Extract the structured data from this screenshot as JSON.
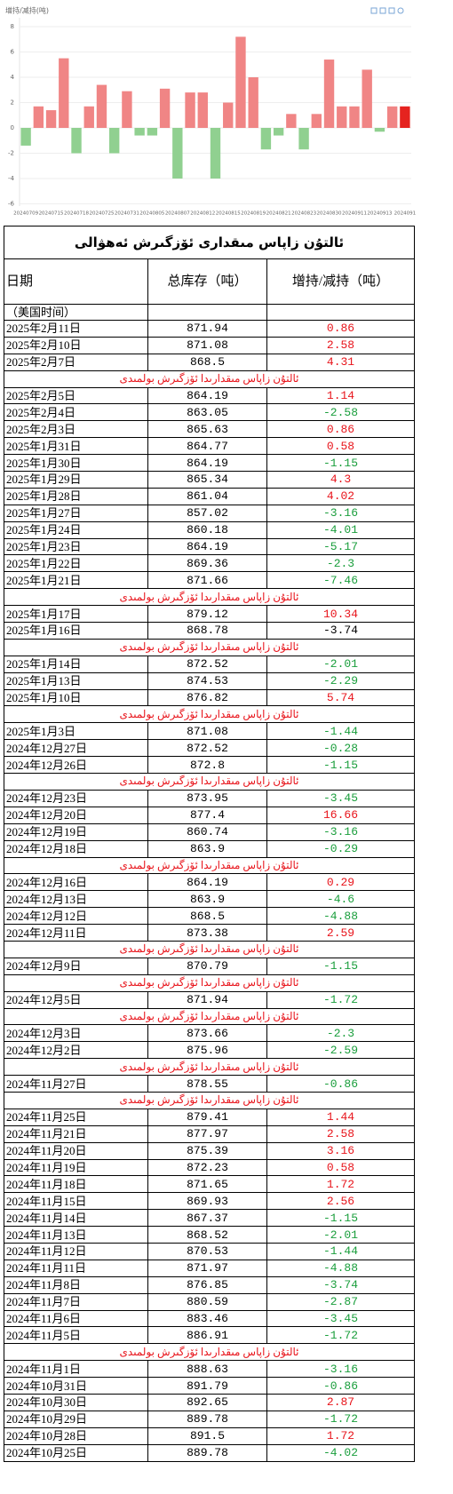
{
  "chart_data": {
    "type": "bar",
    "title": "增持/减持(吨)",
    "categories": [
      "20240709",
      null,
      "20240715",
      null,
      "20240718",
      null,
      "20240725",
      null,
      "20240731",
      null,
      "20240805",
      null,
      "20240807",
      null,
      "20240812",
      null,
      "20240815",
      null,
      "20240819",
      null,
      "20240821",
      null,
      "20240823",
      null,
      "20240830",
      null,
      "20240911",
      null,
      "20240913",
      null,
      "2024091"
    ],
    "values": [
      -1.4,
      1.7,
      1.4,
      5.5,
      -2,
      1.7,
      3.4,
      -2,
      2.9,
      -0.6,
      -0.6,
      3.1,
      -4,
      2.8,
      2.8,
      -4,
      2,
      7.2,
      4,
      -1.7,
      -0.6,
      1.1,
      -1.7,
      1.1,
      5.4,
      1.7,
      1.7,
      4.6,
      -0.3,
      1.7,
      1.7
    ],
    "positive_color": "#f08585",
    "negative_color": "#90d090",
    "highlight_bar": 30,
    "highlight_color": "#e5231f",
    "ylim": [
      -6,
      8
    ],
    "yticks": [
      -6,
      -4,
      -2,
      0,
      2,
      4,
      6,
      8
    ],
    "grid": true
  },
  "table": {
    "title": "ئالتۇن زاپاس مىقدارى ئۆزگىرش ئەھۋالى",
    "header": [
      "日期",
      "总库存（吨）",
      "增持/减持（吨）"
    ],
    "subheader": "（美国时间）",
    "rows": [
      {
        "date": "2025年2月11日",
        "total": "871.94",
        "change": "0.86",
        "color": "#e8141b"
      },
      {
        "date": "2025年2月10日",
        "total": "871.08",
        "change": "2.58",
        "color": "#e8141b"
      },
      {
        "date": "2025年2月7日",
        "total": "868.5",
        "change": "4.31",
        "color": "#e8141b"
      },
      {
        "note": "ئالتۇن زاپاس مىقدارىدا ئۆزگىرش بولمىدى",
        "color": "#e8141b"
      },
      {
        "date": "2025年2月5日",
        "total": "864.19",
        "change": "1.14",
        "color": "#e8141b"
      },
      {
        "date": "2025年2月4日",
        "total": "863.05",
        "change": "-2.58",
        "color": "#1a9e3c"
      },
      {
        "date": "2025年2月3日",
        "total": "865.63",
        "change": "0.86",
        "color": "#e8141b"
      },
      {
        "date": "2025年1月31日",
        "total": "864.77",
        "change": "0.58",
        "color": "#e8141b"
      },
      {
        "date": "2025年1月30日",
        "total": "864.19",
        "change": "-1.15",
        "color": "#1a9e3c"
      },
      {
        "date": "2025年1月29日",
        "total": "865.34",
        "change": "4.3",
        "color": "#e8141b"
      },
      {
        "date": "2025年1月28日",
        "total": "861.04",
        "change": "4.02",
        "color": "#e8141b"
      },
      {
        "date": "2025年1月27日",
        "total": "857.02",
        "change": "-3.16",
        "color": "#1a9e3c"
      },
      {
        "date": "2025年1月24日",
        "total": "860.18",
        "change": "-4.01",
        "color": "#1a9e3c"
      },
      {
        "date": "2025年1月23日",
        "total": "864.19",
        "change": "-5.17",
        "color": "#1a9e3c"
      },
      {
        "date": "2025年1月22日",
        "total": "869.36",
        "change": "-2.3",
        "color": "#1a9e3c"
      },
      {
        "date": "2025年1月21日",
        "total": "871.66",
        "change": "-7.46",
        "color": "#1a9e3c"
      },
      {
        "note": "ئالتۇن زاپاس مىقدارىدا ئۆزگىرش بولمىدى",
        "color": "#e8141b"
      },
      {
        "date": "2025年1月17日",
        "total": "879.12",
        "change": "10.34",
        "color": "#e8141b"
      },
      {
        "date": "2025年1月16日",
        "total": "868.78",
        "change": "-3.74",
        "color": "#000000"
      },
      {
        "note": "ئالتۇن زاپاس مىقدارىدا ئۆزگىرش بولمىدى",
        "color": "#e8141b"
      },
      {
        "date": "2025年1月14日",
        "total": "872.52",
        "change": "-2.01",
        "color": "#1a9e3c"
      },
      {
        "date": "2025年1月13日",
        "total": "874.53",
        "change": "-2.29",
        "color": "#1a9e3c"
      },
      {
        "date": "2025年1月10日",
        "total": "876.82",
        "change": "5.74",
        "color": "#e8141b"
      },
      {
        "note": "ئالتۇن زاپاس مىقدارىدا ئۆزگىرش بولمىدى",
        "color": "#e8141b"
      },
      {
        "date": "2025年1月3日",
        "total": "871.08",
        "change": "-1.44",
        "color": "#1a9e3c"
      },
      {
        "date": "2024年12月27日",
        "total": "872.52",
        "change": "-0.28",
        "color": "#1a9e3c"
      },
      {
        "date": "2024年12月26日",
        "total": "872.8",
        "change": "-1.15",
        "color": "#1a9e3c"
      },
      {
        "note": "ئالتۇن زاپاس مىقدارىدا ئۆزگىرش بولمىدى",
        "color": "#e8141b"
      },
      {
        "date": "2024年12月23日",
        "total": "873.95",
        "change": "-3.45",
        "color": "#1a9e3c"
      },
      {
        "date": "2024年12月20日",
        "total": "877.4",
        "change": "16.66",
        "color": "#e8141b"
      },
      {
        "date": "2024年12月19日",
        "total": "860.74",
        "change": "-3.16",
        "color": "#1a9e3c"
      },
      {
        "date": "2024年12月18日",
        "total": "863.9",
        "change": "-0.29",
        "color": "#1a9e3c"
      },
      {
        "note": "ئالتۇن زاپاس مىقدارىدا ئۆزگىرش بولمىدى",
        "color": "#e8141b"
      },
      {
        "date": "2024年12月16日",
        "total": "864.19",
        "change": "0.29",
        "color": "#e8141b"
      },
      {
        "date": "2024年12月13日",
        "total": "863.9",
        "change": "-4.6",
        "color": "#1a9e3c"
      },
      {
        "date": "2024年12月12日",
        "total": "868.5",
        "change": "-4.88",
        "color": "#1a9e3c"
      },
      {
        "date": "2024年12月11日",
        "total": "873.38",
        "change": "2.59",
        "color": "#e8141b"
      },
      {
        "note": "ئالتۇن زاپاس مىقدارىدا ئۆزگىرش بولمىدى",
        "color": "#e8141b"
      },
      {
        "date": "2024年12月9日",
        "total": "870.79",
        "change": "-1.15",
        "color": "#1a9e3c"
      },
      {
        "note": "ئالتۇن زاپاس مىقدارىدا ئۆزگىرش بولمىدى",
        "color": "#e8141b"
      },
      {
        "date": "2024年12月5日",
        "total": "871.94",
        "change": "-1.72",
        "color": "#1a9e3c"
      },
      {
        "note": "ئالتۇن زاپاس مىقدارىدا ئۆزگىرش بولمىدى",
        "color": "#e8141b"
      },
      {
        "date": "2024年12月3日",
        "total": "873.66",
        "change": "-2.3",
        "color": "#1a9e3c"
      },
      {
        "date": "2024年12月2日",
        "total": "875.96",
        "change": "-2.59",
        "color": "#1a9e3c"
      },
      {
        "note": "ئالتۇن زاپاس مىقدارىدا ئۆزگىرش بولمىدى",
        "color": "#e8141b"
      },
      {
        "date": "2024年11月27日",
        "total": "878.55",
        "change": "-0.86",
        "color": "#1a9e3c"
      },
      {
        "note": "ئالتۇن زاپاس مىقدارىدا ئۆزگىرش بولمىدى",
        "color": "#e8141b"
      },
      {
        "date": "2024年11月25日",
        "total": "879.41",
        "change": "1.44",
        "color": "#e8141b"
      },
      {
        "date": "2024年11月21日",
        "total": "877.97",
        "change": "2.58",
        "color": "#e8141b"
      },
      {
        "date": "2024年11月20日",
        "total": "875.39",
        "change": "3.16",
        "color": "#e8141b"
      },
      {
        "date": "2024年11月19日",
        "total": "872.23",
        "change": "0.58",
        "color": "#e8141b"
      },
      {
        "date": "2024年11月18日",
        "total": "871.65",
        "change": "1.72",
        "color": "#e8141b"
      },
      {
        "date": "2024年11月15日",
        "total": "869.93",
        "change": "2.56",
        "color": "#e8141b"
      },
      {
        "date": "2024年11月14日",
        "total": "867.37",
        "change": "-1.15",
        "color": "#1a9e3c"
      },
      {
        "date": "2024年11月13日",
        "total": "868.52",
        "change": "-2.01",
        "color": "#1a9e3c"
      },
      {
        "date": "2024年11月12日",
        "total": "870.53",
        "change": "-1.44",
        "color": "#1a9e3c"
      },
      {
        "date": "2024年11月11日",
        "total": "871.97",
        "change": "-4.88",
        "color": "#1a9e3c"
      },
      {
        "date": "2024年11月8日",
        "total": "876.85",
        "change": "-3.74",
        "color": "#1a9e3c"
      },
      {
        "date": "2024年11月7日",
        "total": "880.59",
        "change": "-2.87",
        "color": "#1a9e3c"
      },
      {
        "date": "2024年11月6日",
        "total": "883.46",
        "change": "-3.45",
        "color": "#1a9e3c"
      },
      {
        "date": "2024年11月5日",
        "total": "886.91",
        "change": "-1.72",
        "color": "#1a9e3c"
      },
      {
        "note": "ئالتۇن زاپاس مىقدارىدا ئۆزگىرش بولمىدى",
        "color": "#e8141b"
      },
      {
        "date": "2024年11月1日",
        "total": "888.63",
        "change": "-3.16",
        "color": "#1a9e3c"
      },
      {
        "date": "2024年10月31日",
        "total": "891.79",
        "change": "-0.86",
        "color": "#1a9e3c"
      },
      {
        "date": "2024年10月30日",
        "total": "892.65",
        "change": "2.87",
        "color": "#e8141b"
      },
      {
        "date": "2024年10月29日",
        "total": "889.78",
        "change": "-1.72",
        "color": "#1a9e3c"
      },
      {
        "date": "2024年10月28日",
        "total": "891.5",
        "change": "1.72",
        "color": "#e8141b"
      },
      {
        "date": "2024年10月25日",
        "total": "889.78",
        "change": "-4.02",
        "color": "#1a9e3c"
      }
    ]
  }
}
